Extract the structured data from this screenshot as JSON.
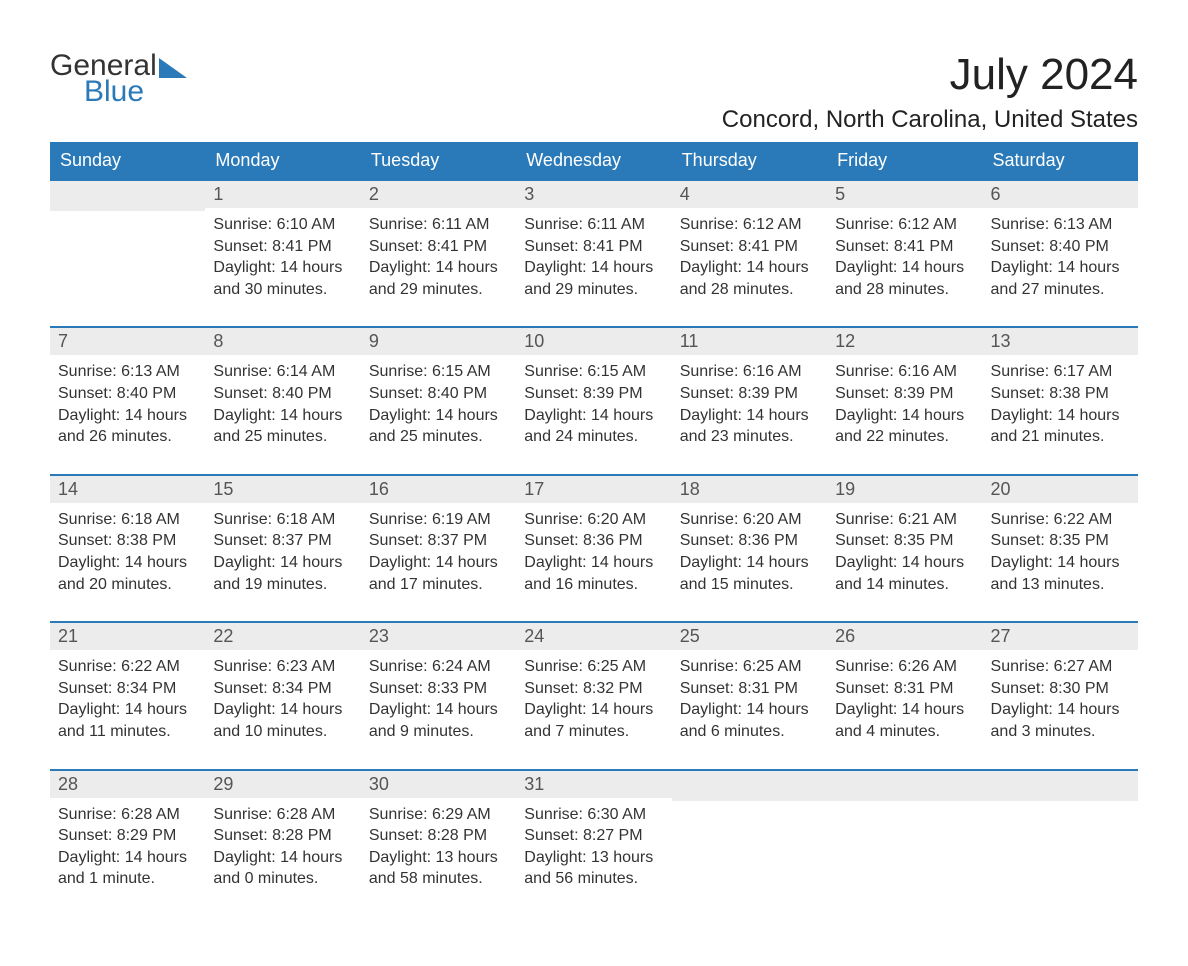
{
  "logo": {
    "line1": "General",
    "line2": "Blue"
  },
  "title": "July 2024",
  "location": "Concord, North Carolina, United States",
  "colors": {
    "header_bg": "#2a7ab9",
    "header_text": "#ffffff",
    "daynum_bg": "#ececec",
    "week_divider": "#2a7ab9",
    "body_text": "#333333",
    "page_bg": "#ffffff"
  },
  "weekday_headers": [
    "Sunday",
    "Monday",
    "Tuesday",
    "Wednesday",
    "Thursday",
    "Friday",
    "Saturday"
  ],
  "labels": {
    "sunrise": "Sunrise:",
    "sunset": "Sunset:",
    "daylight": "Daylight:"
  },
  "weeks": [
    [
      null,
      {
        "n": "1",
        "sunrise": "6:10 AM",
        "sunset": "8:41 PM",
        "daylight": "14 hours and 30 minutes."
      },
      {
        "n": "2",
        "sunrise": "6:11 AM",
        "sunset": "8:41 PM",
        "daylight": "14 hours and 29 minutes."
      },
      {
        "n": "3",
        "sunrise": "6:11 AM",
        "sunset": "8:41 PM",
        "daylight": "14 hours and 29 minutes."
      },
      {
        "n": "4",
        "sunrise": "6:12 AM",
        "sunset": "8:41 PM",
        "daylight": "14 hours and 28 minutes."
      },
      {
        "n": "5",
        "sunrise": "6:12 AM",
        "sunset": "8:41 PM",
        "daylight": "14 hours and 28 minutes."
      },
      {
        "n": "6",
        "sunrise": "6:13 AM",
        "sunset": "8:40 PM",
        "daylight": "14 hours and 27 minutes."
      }
    ],
    [
      {
        "n": "7",
        "sunrise": "6:13 AM",
        "sunset": "8:40 PM",
        "daylight": "14 hours and 26 minutes."
      },
      {
        "n": "8",
        "sunrise": "6:14 AM",
        "sunset": "8:40 PM",
        "daylight": "14 hours and 25 minutes."
      },
      {
        "n": "9",
        "sunrise": "6:15 AM",
        "sunset": "8:40 PM",
        "daylight": "14 hours and 25 minutes."
      },
      {
        "n": "10",
        "sunrise": "6:15 AM",
        "sunset": "8:39 PM",
        "daylight": "14 hours and 24 minutes."
      },
      {
        "n": "11",
        "sunrise": "6:16 AM",
        "sunset": "8:39 PM",
        "daylight": "14 hours and 23 minutes."
      },
      {
        "n": "12",
        "sunrise": "6:16 AM",
        "sunset": "8:39 PM",
        "daylight": "14 hours and 22 minutes."
      },
      {
        "n": "13",
        "sunrise": "6:17 AM",
        "sunset": "8:38 PM",
        "daylight": "14 hours and 21 minutes."
      }
    ],
    [
      {
        "n": "14",
        "sunrise": "6:18 AM",
        "sunset": "8:38 PM",
        "daylight": "14 hours and 20 minutes."
      },
      {
        "n": "15",
        "sunrise": "6:18 AM",
        "sunset": "8:37 PM",
        "daylight": "14 hours and 19 minutes."
      },
      {
        "n": "16",
        "sunrise": "6:19 AM",
        "sunset": "8:37 PM",
        "daylight": "14 hours and 17 minutes."
      },
      {
        "n": "17",
        "sunrise": "6:20 AM",
        "sunset": "8:36 PM",
        "daylight": "14 hours and 16 minutes."
      },
      {
        "n": "18",
        "sunrise": "6:20 AM",
        "sunset": "8:36 PM",
        "daylight": "14 hours and 15 minutes."
      },
      {
        "n": "19",
        "sunrise": "6:21 AM",
        "sunset": "8:35 PM",
        "daylight": "14 hours and 14 minutes."
      },
      {
        "n": "20",
        "sunrise": "6:22 AM",
        "sunset": "8:35 PM",
        "daylight": "14 hours and 13 minutes."
      }
    ],
    [
      {
        "n": "21",
        "sunrise": "6:22 AM",
        "sunset": "8:34 PM",
        "daylight": "14 hours and 11 minutes."
      },
      {
        "n": "22",
        "sunrise": "6:23 AM",
        "sunset": "8:34 PM",
        "daylight": "14 hours and 10 minutes."
      },
      {
        "n": "23",
        "sunrise": "6:24 AM",
        "sunset": "8:33 PM",
        "daylight": "14 hours and 9 minutes."
      },
      {
        "n": "24",
        "sunrise": "6:25 AM",
        "sunset": "8:32 PM",
        "daylight": "14 hours and 7 minutes."
      },
      {
        "n": "25",
        "sunrise": "6:25 AM",
        "sunset": "8:31 PM",
        "daylight": "14 hours and 6 minutes."
      },
      {
        "n": "26",
        "sunrise": "6:26 AM",
        "sunset": "8:31 PM",
        "daylight": "14 hours and 4 minutes."
      },
      {
        "n": "27",
        "sunrise": "6:27 AM",
        "sunset": "8:30 PM",
        "daylight": "14 hours and 3 minutes."
      }
    ],
    [
      {
        "n": "28",
        "sunrise": "6:28 AM",
        "sunset": "8:29 PM",
        "daylight": "14 hours and 1 minute."
      },
      {
        "n": "29",
        "sunrise": "6:28 AM",
        "sunset": "8:28 PM",
        "daylight": "14 hours and 0 minutes."
      },
      {
        "n": "30",
        "sunrise": "6:29 AM",
        "sunset": "8:28 PM",
        "daylight": "13 hours and 58 minutes."
      },
      {
        "n": "31",
        "sunrise": "6:30 AM",
        "sunset": "8:27 PM",
        "daylight": "13 hours and 56 minutes."
      },
      null,
      null,
      null
    ]
  ]
}
